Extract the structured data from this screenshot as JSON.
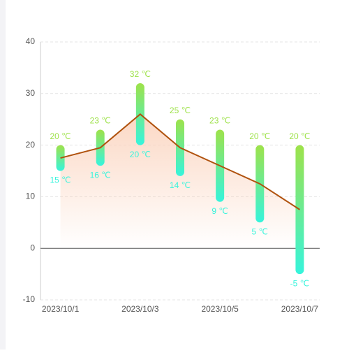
{
  "chart_data": {
    "type": "range_bar",
    "categories": [
      "2023/10/1",
      null,
      "2023/10/3",
      null,
      "2023/10/5",
      null,
      "2023/10/7"
    ],
    "high": {
      "values": [
        20,
        23,
        32,
        25,
        23,
        20,
        20
      ],
      "value_labels": [
        "20 ℃",
        "23 ℃",
        "32 ℃",
        "25 ℃",
        "23 ℃",
        "20 ℃",
        "20 ℃"
      ],
      "color": "#9ee24a"
    },
    "low": {
      "values": [
        15,
        16,
        20,
        14,
        9,
        5,
        -5
      ],
      "value_labels": [
        "15 ℃",
        "16 ℃",
        "20 ℃",
        "14 ℃",
        "9 ℃",
        "5 ℃",
        "-5 ℃"
      ],
      "color": "#36f4dc"
    },
    "line": {
      "values": [
        17.5,
        19.5,
        26,
        19.5,
        16,
        12.5,
        7.5
      ],
      "color": "#b0520e",
      "area_color": "#fbd3bd"
    },
    "ylim": [
      -10,
      40
    ],
    "yticks": [
      -10,
      0,
      10,
      20,
      30,
      40
    ],
    "grid": true
  }
}
